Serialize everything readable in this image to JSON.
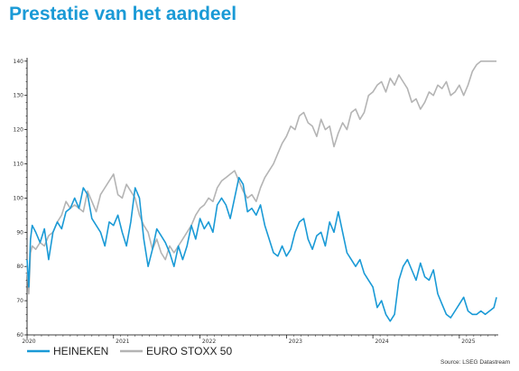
{
  "title": "Prestatie van het aandeel",
  "source": "Source: LSEG Datastream",
  "colors": {
    "title": "#1a9ad6",
    "heineken": "#1a9ad6",
    "eurostoxx": "#b4b4b4",
    "axis": "#000000"
  },
  "chart_data": {
    "type": "line",
    "title": "",
    "xlabel": "",
    "ylabel": "",
    "ylim": [
      60,
      141
    ],
    "xlim": [
      2020.0,
      2025.45
    ],
    "yticks": [
      "60",
      "70",
      "80",
      "90",
      "100",
      "110",
      "120",
      "130",
      "140"
    ],
    "xticks": [
      "2020",
      "2021",
      "2022",
      "2023",
      "2024",
      "2025"
    ],
    "grid": false,
    "legend": "bottom-left",
    "series": [
      {
        "name": "HEINEKEN",
        "color": "#1a9ad6",
        "x": [
          2020.0,
          2020.02,
          2020.04,
          2020.06,
          2020.1,
          2020.15,
          2020.2,
          2020.25,
          2020.3,
          2020.35,
          2020.4,
          2020.45,
          2020.5,
          2020.55,
          2020.6,
          2020.65,
          2020.7,
          2020.75,
          2020.8,
          2020.85,
          2020.9,
          2020.95,
          2021.0,
          2021.05,
          2021.1,
          2021.15,
          2021.2,
          2021.25,
          2021.3,
          2021.35,
          2021.4,
          2021.45,
          2021.5,
          2021.55,
          2021.6,
          2021.65,
          2021.7,
          2021.75,
          2021.8,
          2021.85,
          2021.9,
          2021.95,
          2022.0,
          2022.05,
          2022.1,
          2022.15,
          2022.2,
          2022.25,
          2022.3,
          2022.35,
          2022.4,
          2022.45,
          2022.5,
          2022.55,
          2022.6,
          2022.65,
          2022.7,
          2022.75,
          2022.8,
          2022.85,
          2022.9,
          2022.95,
          2023.0,
          2023.05,
          2023.1,
          2023.15,
          2023.2,
          2023.25,
          2023.3,
          2023.35,
          2023.4,
          2023.45,
          2023.5,
          2023.55,
          2023.6,
          2023.65,
          2023.7,
          2023.75,
          2023.8,
          2023.85,
          2023.9,
          2023.95,
          2024.0,
          2024.05,
          2024.1,
          2024.15,
          2024.2,
          2024.25,
          2024.3,
          2024.35,
          2024.4,
          2024.45,
          2024.5,
          2024.55,
          2024.6,
          2024.65,
          2024.7,
          2024.75,
          2024.8,
          2024.85,
          2024.9,
          2024.95,
          2025.0,
          2025.05,
          2025.1,
          2025.15,
          2025.2,
          2025.25,
          2025.3,
          2025.35,
          2025.4,
          2025.43
        ],
        "values": [
          82,
          74,
          88,
          92,
          90,
          87,
          91,
          82,
          90,
          93,
          91,
          96,
          97,
          100,
          97,
          103,
          101,
          94,
          92,
          90,
          86,
          93,
          92,
          95,
          90,
          86,
          93,
          103,
          100,
          88,
          80,
          85,
          91,
          89,
          87,
          84,
          80,
          86,
          82,
          86,
          92,
          88,
          94,
          91,
          93,
          90,
          98,
          100,
          98,
          94,
          100,
          106,
          104,
          96,
          97,
          95,
          98,
          92,
          88,
          84,
          83,
          86,
          83,
          85,
          90,
          93,
          94,
          88,
          85,
          89,
          90,
          86,
          93,
          90,
          96,
          90,
          84,
          82,
          80,
          82,
          78,
          76,
          74,
          68,
          70,
          66,
          64,
          66,
          76,
          80,
          82,
          79,
          76,
          81,
          77,
          76,
          79,
          72,
          69,
          66,
          65,
          67,
          69,
          71,
          67,
          66,
          66,
          67,
          66,
          67,
          68,
          71
        ]
      },
      {
        "name": "EURO STOXX 50",
        "color": "#b4b4b4",
        "x": [
          2020.0,
          2020.02,
          2020.04,
          2020.06,
          2020.1,
          2020.15,
          2020.2,
          2020.25,
          2020.3,
          2020.35,
          2020.4,
          2020.45,
          2020.5,
          2020.55,
          2020.6,
          2020.65,
          2020.7,
          2020.75,
          2020.8,
          2020.85,
          2020.9,
          2020.95,
          2021.0,
          2021.05,
          2021.1,
          2021.15,
          2021.2,
          2021.25,
          2021.3,
          2021.35,
          2021.4,
          2021.45,
          2021.5,
          2021.55,
          2021.6,
          2021.65,
          2021.7,
          2021.75,
          2021.8,
          2021.85,
          2021.9,
          2021.95,
          2022.0,
          2022.05,
          2022.1,
          2022.15,
          2022.2,
          2022.25,
          2022.3,
          2022.35,
          2022.4,
          2022.45,
          2022.5,
          2022.55,
          2022.6,
          2022.65,
          2022.7,
          2022.75,
          2022.8,
          2022.85,
          2022.9,
          2022.95,
          2023.0,
          2023.05,
          2023.1,
          2023.15,
          2023.2,
          2023.25,
          2023.3,
          2023.35,
          2023.4,
          2023.45,
          2023.5,
          2023.55,
          2023.6,
          2023.65,
          2023.7,
          2023.75,
          2023.8,
          2023.85,
          2023.9,
          2023.95,
          2024.0,
          2024.05,
          2024.1,
          2024.15,
          2024.2,
          2024.25,
          2024.3,
          2024.35,
          2024.4,
          2024.45,
          2024.5,
          2024.55,
          2024.6,
          2024.65,
          2024.7,
          2024.75,
          2024.8,
          2024.85,
          2024.9,
          2024.95,
          2025.0,
          2025.05,
          2025.1,
          2025.15,
          2025.2,
          2025.25,
          2025.3,
          2025.35,
          2025.4,
          2025.43
        ],
        "values": [
          80,
          72,
          84,
          86,
          85,
          87,
          86,
          89,
          90,
          93,
          95,
          99,
          97,
          98,
          97,
          96,
          102,
          99,
          96,
          101,
          103,
          105,
          107,
          101,
          100,
          104,
          102,
          100,
          95,
          92,
          90,
          85,
          88,
          84,
          82,
          86,
          84,
          86,
          88,
          90,
          92,
          95,
          97,
          98,
          100,
          99,
          103,
          105,
          106,
          107,
          108,
          105,
          102,
          100,
          101,
          99,
          103,
          106,
          108,
          110,
          113,
          116,
          118,
          121,
          120,
          124,
          125,
          122,
          121,
          118,
          123,
          120,
          121,
          115,
          119,
          122,
          120,
          125,
          126,
          123,
          125,
          130,
          131,
          133,
          134,
          131,
          135,
          133,
          136,
          134,
          132,
          128,
          129,
          126,
          128,
          131,
          130,
          133,
          132,
          134,
          130,
          131,
          133,
          130,
          133,
          137,
          139,
          140,
          140,
          140,
          140,
          140
        ]
      }
    ]
  }
}
